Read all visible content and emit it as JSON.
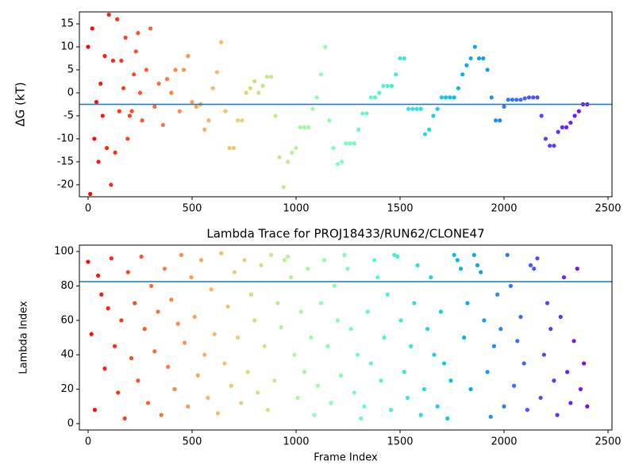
{
  "chart_data": [
    {
      "type": "scatter",
      "ylabel": "ΔG (kT)",
      "colormap": "rainbow_r",
      "color_by": "x",
      "xlim": [
        -42,
        2519
      ],
      "xticks": [
        0,
        500,
        1000,
        1500,
        2000,
        2500
      ],
      "ylim": [
        -22.6,
        17.6
      ],
      "yticks": [
        -20,
        -15,
        -10,
        -5,
        0,
        5,
        10,
        15
      ],
      "hlines": [
        {
          "y": -2.5,
          "color": "#1f77b4"
        }
      ],
      "x": [
        0,
        20,
        40,
        60,
        80,
        100,
        120,
        140,
        160,
        180,
        200,
        220,
        240,
        260,
        280,
        300,
        320,
        340,
        360,
        380,
        400,
        420,
        440,
        460,
        480,
        500,
        520,
        540,
        560,
        580,
        600,
        620,
        640,
        660,
        680,
        700,
        720,
        740,
        760,
        780,
        800,
        820,
        840,
        860,
        880,
        900,
        920,
        940,
        960,
        980,
        1000,
        1020,
        1040,
        1060,
        1080,
        1100,
        1120,
        1140,
        1160,
        1180,
        1200,
        1220,
        1240,
        1260,
        1280,
        1300,
        1320,
        1340,
        1360,
        1380,
        1400,
        1420,
        1440,
        1460,
        1480,
        1500,
        1520,
        1540,
        1560,
        1580,
        1600,
        1620,
        1640,
        1660,
        1680,
        1700,
        1720,
        1740,
        1760,
        1780,
        1800,
        1820,
        1840,
        1860,
        1880,
        1900,
        1920,
        1940,
        1960,
        1980,
        2000,
        2020,
        2040,
        2060,
        2080,
        2100,
        2120,
        2140,
        2160,
        2180,
        2200,
        2220,
        2240,
        2260,
        2280,
        2300,
        2320,
        2340,
        2360,
        2380,
        2400,
        10,
        30,
        50,
        70,
        90,
        110,
        130,
        150,
        170,
        190,
        210,
        230,
        250
      ],
      "values": [
        10,
        14,
        -2,
        2,
        8,
        17,
        7,
        16,
        7,
        12,
        -5,
        4,
        13,
        -6,
        5,
        14,
        -3,
        2,
        -7,
        3,
        0,
        5,
        -4,
        5,
        8,
        -2,
        -3,
        -2.5,
        -8,
        -6,
        1,
        4.5,
        11,
        -4,
        -12,
        -12,
        -6,
        -6,
        0,
        1,
        2.5,
        0,
        1.5,
        3.5,
        3.5,
        -5,
        -14,
        -20.5,
        -15,
        -13,
        -12,
        -7.5,
        -7.5,
        -7.5,
        -3.5,
        -1,
        4,
        10,
        -6,
        -12,
        -15.5,
        -15,
        -11,
        -11,
        -11,
        -8,
        -4.5,
        -4.5,
        -1,
        -1,
        0,
        1.5,
        1.5,
        1.5,
        4,
        7.5,
        7.5,
        -3.5,
        -3.5,
        -3.5,
        -3.5,
        -9,
        -8,
        -5,
        -3.5,
        -1,
        -1,
        -1,
        -1,
        1,
        4,
        6,
        7.5,
        10,
        7.5,
        7.5,
        5,
        -1,
        -6,
        -6,
        -3,
        -1.5,
        -1.5,
        -1.5,
        -1.5,
        -1.2,
        -1,
        -1,
        -1,
        -5,
        -10,
        -11.5,
        -11.5,
        -8.5,
        -7.5,
        -7.5,
        -6.5,
        -5,
        -4,
        -2.5,
        -2.5,
        -22,
        -10,
        -15,
        -5,
        -12,
        -20,
        -13,
        -4,
        1,
        -10,
        -4,
        9,
        0
      ]
    },
    {
      "type": "scatter",
      "title": "Lambda Trace for PROJ18433/RUN62/CLONE47",
      "xlabel": "Frame Index",
      "ylabel": "Lambda Index",
      "colormap": "rainbow_r",
      "color_by": "x",
      "xlim": [
        -42,
        2519
      ],
      "xticks": [
        0,
        500,
        1000,
        1500,
        2000,
        2500
      ],
      "ylim": [
        -3.7,
        103.7
      ],
      "yticks": [
        0,
        20,
        40,
        60,
        80,
        100
      ],
      "hlines": [
        {
          "y": 82.5,
          "color": "#1f77b4"
        }
      ],
      "x": [
        0,
        16,
        32,
        48,
        64,
        80,
        96,
        112,
        128,
        144,
        160,
        176,
        192,
        208,
        224,
        240,
        256,
        272,
        288,
        304,
        320,
        336,
        352,
        368,
        384,
        400,
        416,
        432,
        448,
        464,
        480,
        496,
        512,
        528,
        544,
        560,
        576,
        592,
        608,
        624,
        640,
        656,
        672,
        688,
        704,
        720,
        736,
        752,
        768,
        784,
        800,
        816,
        832,
        848,
        864,
        880,
        896,
        912,
        928,
        944,
        960,
        976,
        992,
        1008,
        1024,
        1040,
        1056,
        1072,
        1088,
        1104,
        1120,
        1136,
        1152,
        1168,
        1184,
        1200,
        1216,
        1232,
        1248,
        1264,
        1280,
        1296,
        1312,
        1328,
        1344,
        1360,
        1376,
        1392,
        1408,
        1424,
        1440,
        1456,
        1472,
        1488,
        1504,
        1520,
        1536,
        1552,
        1568,
        1584,
        1600,
        1616,
        1632,
        1648,
        1664,
        1680,
        1696,
        1712,
        1728,
        1744,
        1760,
        1776,
        1792,
        1808,
        1824,
        1840,
        1856,
        1872,
        1888,
        1904,
        1920,
        1936,
        1952,
        1968,
        1984,
        2000,
        2016,
        2032,
        2048,
        2064,
        2080,
        2096,
        2112,
        2128,
        2144,
        2160,
        2176,
        2192,
        2208,
        2224,
        2240,
        2256,
        2272,
        2288,
        2304,
        2320,
        2336,
        2352,
        2368,
        2384,
        2400
      ],
      "values": [
        94,
        52,
        8,
        86,
        75,
        32,
        67,
        96,
        45,
        18,
        60,
        3,
        88,
        38,
        70,
        25,
        97,
        55,
        12,
        80,
        42,
        65,
        5,
        90,
        33,
        72,
        20,
        58,
        98,
        47,
        10,
        85,
        62,
        28,
        95,
        40,
        15,
        78,
        52,
        6,
        99,
        35,
        68,
        22,
        88,
        50,
        12,
        95,
        30,
        75,
        60,
        18,
        92,
        45,
        8,
        98,
        25,
        70,
        56,
        95,
        97,
        85,
        40,
        15,
        65,
        30,
        90,
        50,
        5,
        22,
        70,
        95,
        45,
        12,
        80,
        60,
        28,
        98,
        90,
        55,
        18,
        40,
        3,
        10,
        65,
        35,
        95,
        85,
        25,
        50,
        75,
        8,
        98,
        97,
        60,
        30,
        15,
        45,
        70,
        92,
        5,
        20,
        55,
        85,
        40,
        10,
        65,
        35,
        3,
        25,
        98,
        95,
        90,
        50,
        70,
        20,
        98,
        92,
        88,
        60,
        30,
        4,
        45,
        75,
        55,
        10,
        98,
        80,
        22,
        48,
        62,
        35,
        8,
        92,
        90,
        96,
        15,
        40,
        70,
        55,
        25,
        5,
        62,
        85,
        30,
        12,
        48,
        90,
        20,
        35,
        10
      ]
    }
  ]
}
